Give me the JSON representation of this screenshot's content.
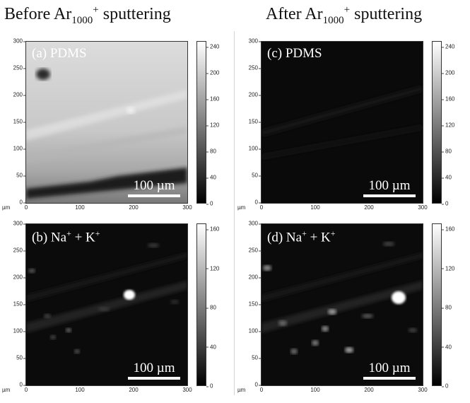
{
  "titles": {
    "left": {
      "prefix": "Before Ar",
      "sub": "1000",
      "sup": "+",
      "suffix": " sputtering"
    },
    "right": {
      "prefix": "After Ar",
      "sub": "1000",
      "sup": "+",
      "suffix": " sputtering"
    }
  },
  "axis": {
    "unit": "µm",
    "y_ticks": [
      "300",
      "250",
      "200",
      "150",
      "100",
      "50",
      "0"
    ],
    "x_ticks": [
      "0",
      "100",
      "200",
      "300"
    ]
  },
  "scale_bar_label": "100 µm",
  "panels": {
    "a": {
      "label": "(a) PDMS",
      "colorbar_ticks": [
        "240",
        "200",
        "160",
        "120",
        "80",
        "40",
        "0"
      ]
    },
    "b": {
      "label_main": "(b) Na",
      "label_mid": " + K",
      "sup": "+",
      "colorbar_ticks": [
        "160",
        "120",
        "80",
        "40",
        "0"
      ]
    },
    "c": {
      "label": "(c) PDMS",
      "colorbar_ticks": [
        "240",
        "200",
        "160",
        "120",
        "80",
        "40",
        "0"
      ]
    },
    "d": {
      "label_main": "(d) Na",
      "label_mid": " + K",
      "sup": "+",
      "colorbar_ticks": [
        "160",
        "120",
        "80",
        "40",
        "0"
      ]
    }
  },
  "colors": {
    "colormap_low": "#000000",
    "colormap_high": "#ffffff"
  }
}
